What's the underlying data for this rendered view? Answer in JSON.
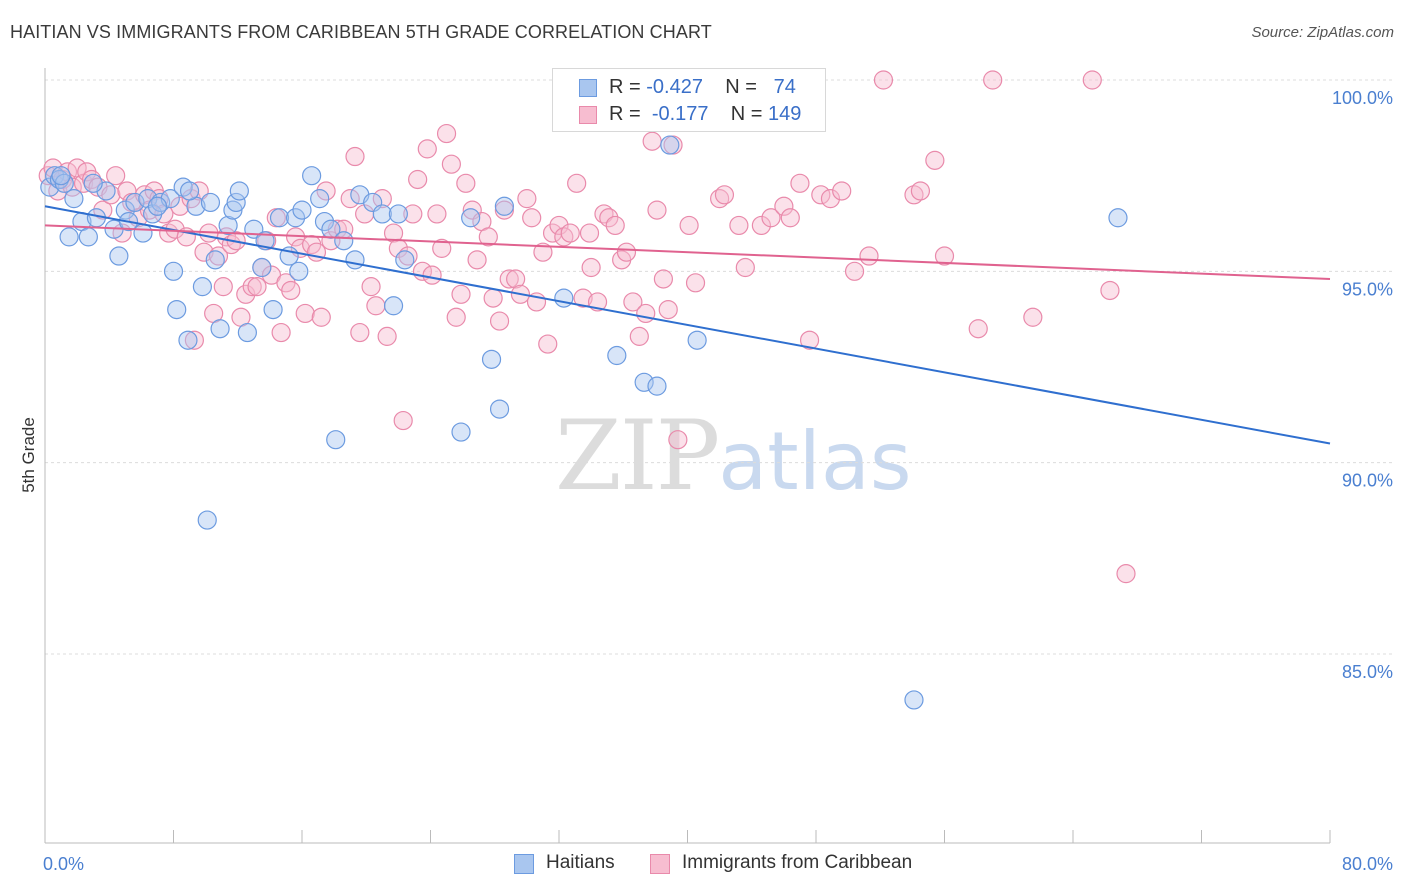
{
  "header": {
    "title": "HAITIAN VS IMMIGRANTS FROM CARIBBEAN 5TH GRADE CORRELATION CHART",
    "source": "Source: ZipAtlas.com"
  },
  "watermark": {
    "zip": "ZIP",
    "atlas": "atlas"
  },
  "legend": {
    "rows": [
      {
        "r_label": "R = ",
        "r_value": "-0.427",
        "n_label": "N = ",
        "n_value": "74",
        "color": "#a9c6ef",
        "border": "#6c9be0"
      },
      {
        "r_label": "R = ",
        "r_value": "-0.177",
        "n_label": "N = ",
        "n_value": "149",
        "color": "#f7bdd0",
        "border": "#e98aab"
      }
    ]
  },
  "bottom_legend": {
    "items": [
      {
        "label": "Haitians",
        "color": "#a9c6ef",
        "border": "#6c9be0"
      },
      {
        "label": "Immigrants from Caribbean",
        "color": "#f7bdd0",
        "border": "#e98aab"
      }
    ]
  },
  "chart_data": {
    "type": "scatter",
    "title": "HAITIAN VS IMMIGRANTS FROM CARIBBEAN 5TH GRADE CORRELATION CHART",
    "xlabel": "",
    "ylabel": "5th Grade",
    "xlim": [
      0,
      80
    ],
    "ylim": [
      80.5,
      100.8
    ],
    "x_ticks": [
      "0.0%",
      "80.0%"
    ],
    "y_ticks": [
      {
        "value": 100,
        "label": "100.0%"
      },
      {
        "value": 95,
        "label": "95.0%"
      },
      {
        "value": 90,
        "label": "90.0%"
      },
      {
        "value": 85,
        "label": "85.0%"
      }
    ],
    "grid": true,
    "legend_position": "top-center",
    "series": [
      {
        "name": "Haitians",
        "color": "#6c9be0",
        "fill": "#a9c6ef",
        "trend": {
          "x": [
            0,
            80
          ],
          "y": [
            96.7,
            90.5
          ]
        },
        "points": [
          [
            0.3,
            97.2
          ],
          [
            0.6,
            97.5
          ],
          [
            0.9,
            97.4
          ],
          [
            1.2,
            97.3
          ],
          [
            1.8,
            96.9
          ],
          [
            1.5,
            95.9
          ],
          [
            2.3,
            96.3
          ],
          [
            2.7,
            95.9
          ],
          [
            3.2,
            96.4
          ],
          [
            3.8,
            97.1
          ],
          [
            4.3,
            96.1
          ],
          [
            4.6,
            95.4
          ],
          [
            5.0,
            96.6
          ],
          [
            5.2,
            96.3
          ],
          [
            5.6,
            96.8
          ],
          [
            6.1,
            96.0
          ],
          [
            6.4,
            96.9
          ],
          [
            6.7,
            96.5
          ],
          [
            7.2,
            96.8
          ],
          [
            7.8,
            96.9
          ],
          [
            8.0,
            95.0
          ],
          [
            8.2,
            94.0
          ],
          [
            8.6,
            97.2
          ],
          [
            8.9,
            93.2
          ],
          [
            9.4,
            96.7
          ],
          [
            9.8,
            94.6
          ],
          [
            10.1,
            88.5
          ],
          [
            10.3,
            96.8
          ],
          [
            10.6,
            95.3
          ],
          [
            10.9,
            93.5
          ],
          [
            11.4,
            96.2
          ],
          [
            11.7,
            96.6
          ],
          [
            11.9,
            96.8
          ],
          [
            12.1,
            97.1
          ],
          [
            12.6,
            93.4
          ],
          [
            13.0,
            96.1
          ],
          [
            13.5,
            95.1
          ],
          [
            13.7,
            95.8
          ],
          [
            14.2,
            94.0
          ],
          [
            14.6,
            96.4
          ],
          [
            15.2,
            95.4
          ],
          [
            15.6,
            96.4
          ],
          [
            15.8,
            95.0
          ],
          [
            16.0,
            96.6
          ],
          [
            16.6,
            97.5
          ],
          [
            17.1,
            96.9
          ],
          [
            17.4,
            96.3
          ],
          [
            17.8,
            96.1
          ],
          [
            18.1,
            90.6
          ],
          [
            18.6,
            95.8
          ],
          [
            19.3,
            95.3
          ],
          [
            19.6,
            97.0
          ],
          [
            20.4,
            96.8
          ],
          [
            21.0,
            96.5
          ],
          [
            21.7,
            94.1
          ],
          [
            22.0,
            96.5
          ],
          [
            22.4,
            95.3
          ],
          [
            25.9,
            90.8
          ],
          [
            26.5,
            96.4
          ],
          [
            27.8,
            92.7
          ],
          [
            28.3,
            91.4
          ],
          [
            28.6,
            96.7
          ],
          [
            32.3,
            94.3
          ],
          [
            35.6,
            92.8
          ],
          [
            37.3,
            92.1
          ],
          [
            38.1,
            92.0
          ],
          [
            38.9,
            98.3
          ],
          [
            40.6,
            93.2
          ],
          [
            66.8,
            96.4
          ],
          [
            54.1,
            83.8
          ],
          [
            3.0,
            97.3
          ],
          [
            9.0,
            97.1
          ],
          [
            7.0,
            96.7
          ],
          [
            1.0,
            97.5
          ]
        ]
      },
      {
        "name": "Immigrants from Caribbean",
        "color": "#e98aab",
        "fill": "#f7bdd0",
        "trend": {
          "x": [
            0,
            80
          ],
          "y": [
            96.2,
            94.8
          ]
        },
        "points": [
          [
            0.2,
            97.5
          ],
          [
            0.5,
            97.7
          ],
          [
            0.8,
            97.1
          ],
          [
            1.1,
            97.4
          ],
          [
            1.4,
            97.6
          ],
          [
            1.7,
            97.2
          ],
          [
            2.0,
            97.7
          ],
          [
            2.4,
            97.3
          ],
          [
            2.6,
            97.6
          ],
          [
            2.9,
            97.4
          ],
          [
            3.3,
            97.2
          ],
          [
            3.6,
            96.6
          ],
          [
            4.1,
            97.0
          ],
          [
            4.4,
            97.5
          ],
          [
            4.8,
            96.0
          ],
          [
            5.1,
            97.1
          ],
          [
            5.4,
            96.8
          ],
          [
            5.8,
            96.4
          ],
          [
            6.2,
            97.0
          ],
          [
            6.5,
            96.6
          ],
          [
            6.8,
            97.1
          ],
          [
            7.1,
            96.9
          ],
          [
            7.4,
            96.5
          ],
          [
            7.7,
            96.0
          ],
          [
            8.1,
            96.1
          ],
          [
            8.4,
            96.7
          ],
          [
            8.8,
            95.9
          ],
          [
            9.1,
            96.9
          ],
          [
            9.3,
            93.2
          ],
          [
            9.6,
            97.1
          ],
          [
            9.9,
            95.5
          ],
          [
            10.2,
            96.0
          ],
          [
            10.5,
            93.9
          ],
          [
            10.8,
            95.4
          ],
          [
            11.1,
            94.6
          ],
          [
            11.3,
            95.9
          ],
          [
            11.6,
            95.7
          ],
          [
            11.9,
            95.8
          ],
          [
            12.2,
            93.8
          ],
          [
            12.5,
            94.4
          ],
          [
            12.9,
            94.6
          ],
          [
            13.2,
            94.6
          ],
          [
            13.5,
            95.1
          ],
          [
            13.8,
            95.8
          ],
          [
            14.1,
            94.9
          ],
          [
            14.4,
            96.4
          ],
          [
            14.7,
            93.4
          ],
          [
            15.0,
            94.7
          ],
          [
            15.3,
            94.5
          ],
          [
            15.6,
            95.9
          ],
          [
            15.9,
            95.6
          ],
          [
            16.2,
            93.9
          ],
          [
            16.6,
            95.7
          ],
          [
            16.9,
            95.5
          ],
          [
            17.2,
            93.8
          ],
          [
            17.5,
            97.1
          ],
          [
            17.8,
            95.8
          ],
          [
            18.2,
            96.1
          ],
          [
            18.6,
            96.1
          ],
          [
            19.0,
            96.9
          ],
          [
            19.3,
            98.0
          ],
          [
            19.6,
            93.4
          ],
          [
            19.9,
            96.5
          ],
          [
            20.3,
            94.6
          ],
          [
            20.6,
            94.1
          ],
          [
            21.0,
            96.9
          ],
          [
            21.3,
            93.3
          ],
          [
            21.7,
            96.0
          ],
          [
            22.0,
            95.6
          ],
          [
            22.3,
            91.1
          ],
          [
            22.6,
            95.4
          ],
          [
            22.9,
            96.5
          ],
          [
            23.2,
            97.4
          ],
          [
            23.5,
            95.0
          ],
          [
            23.8,
            98.2
          ],
          [
            24.1,
            94.9
          ],
          [
            24.4,
            96.5
          ],
          [
            24.7,
            95.6
          ],
          [
            25.0,
            98.6
          ],
          [
            25.3,
            97.8
          ],
          [
            25.6,
            93.8
          ],
          [
            25.9,
            94.4
          ],
          [
            26.2,
            97.3
          ],
          [
            26.6,
            96.6
          ],
          [
            26.9,
            95.3
          ],
          [
            27.2,
            96.3
          ],
          [
            27.6,
            95.9
          ],
          [
            27.9,
            94.3
          ],
          [
            28.3,
            93.7
          ],
          [
            28.6,
            96.6
          ],
          [
            28.9,
            94.8
          ],
          [
            29.3,
            94.8
          ],
          [
            29.6,
            94.4
          ],
          [
            30.0,
            96.9
          ],
          [
            30.3,
            96.4
          ],
          [
            30.6,
            94.2
          ],
          [
            31.0,
            95.5
          ],
          [
            31.3,
            93.1
          ],
          [
            31.6,
            96.0
          ],
          [
            32.0,
            96.2
          ],
          [
            32.3,
            95.9
          ],
          [
            32.7,
            96.0
          ],
          [
            33.1,
            97.3
          ],
          [
            33.5,
            94.3
          ],
          [
            34.0,
            95.1
          ],
          [
            34.4,
            94.2
          ],
          [
            34.8,
            96.5
          ],
          [
            35.1,
            96.4
          ],
          [
            35.5,
            96.2
          ],
          [
            35.9,
            95.3
          ],
          [
            36.2,
            95.5
          ],
          [
            36.6,
            94.2
          ],
          [
            37.0,
            93.3
          ],
          [
            37.4,
            93.9
          ],
          [
            37.8,
            98.4
          ],
          [
            38.1,
            96.6
          ],
          [
            38.5,
            94.8
          ],
          [
            38.8,
            94.0
          ],
          [
            39.1,
            98.3
          ],
          [
            39.4,
            90.6
          ],
          [
            40.1,
            96.2
          ],
          [
            40.5,
            94.7
          ],
          [
            42.0,
            96.9
          ],
          [
            42.3,
            97.0
          ],
          [
            43.2,
            96.2
          ],
          [
            43.6,
            95.1
          ],
          [
            44.6,
            96.2
          ],
          [
            45.2,
            96.4
          ],
          [
            46.0,
            96.7
          ],
          [
            46.4,
            96.4
          ],
          [
            47.0,
            97.3
          ],
          [
            47.6,
            93.2
          ],
          [
            48.3,
            97.0
          ],
          [
            48.9,
            96.9
          ],
          [
            49.6,
            97.1
          ],
          [
            50.4,
            95.0
          ],
          [
            51.3,
            95.4
          ],
          [
            52.2,
            100.0
          ],
          [
            54.1,
            97.0
          ],
          [
            54.5,
            97.1
          ],
          [
            55.4,
            97.9
          ],
          [
            56.0,
            95.4
          ],
          [
            58.1,
            93.5
          ],
          [
            59.0,
            100.0
          ],
          [
            61.5,
            93.8
          ],
          [
            66.3,
            94.5
          ],
          [
            67.3,
            87.1
          ],
          [
            65.2,
            100.0
          ],
          [
            33.9,
            96.0
          ]
        ]
      }
    ]
  }
}
